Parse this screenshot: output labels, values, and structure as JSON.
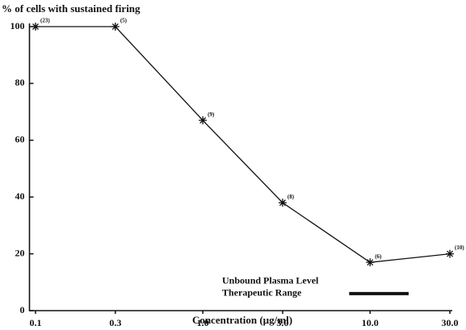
{
  "chart_data": {
    "type": "line",
    "title": "% of cells with sustained firing",
    "x_label": "Concentration (µg/ml)",
    "log_x": true,
    "x": [
      0.1,
      0.3,
      1.0,
      3.0,
      10.0,
      30.0
    ],
    "series": [
      {
        "name": "sustained firing",
        "color": "#111111",
        "values": [
          100,
          100,
          67,
          38,
          17,
          20
        ],
        "point_labels": [
          "(23)",
          "(5)",
          "(9)",
          "(8)",
          "(6)",
          "(10)"
        ]
      }
    ],
    "xlim": [
      0.092,
      31
    ],
    "xticks": [
      0.1,
      0.3,
      {
        "value": 1,
        "label": "1.0"
      },
      {
        "value": 3,
        "label": "3.0"
      },
      {
        "value": 10,
        "label": "10.0"
      },
      {
        "value": 30,
        "label": "30.0"
      }
    ],
    "ylim": [
      0,
      100
    ],
    "yticks": [
      0,
      20,
      40,
      60,
      80,
      100
    ],
    "range": {
      "labels": [
        "Unbound Plasma Level",
        "Therapeutic Range"
      ],
      "x": [
        7.5,
        17
      ],
      "y": 6
    }
  }
}
